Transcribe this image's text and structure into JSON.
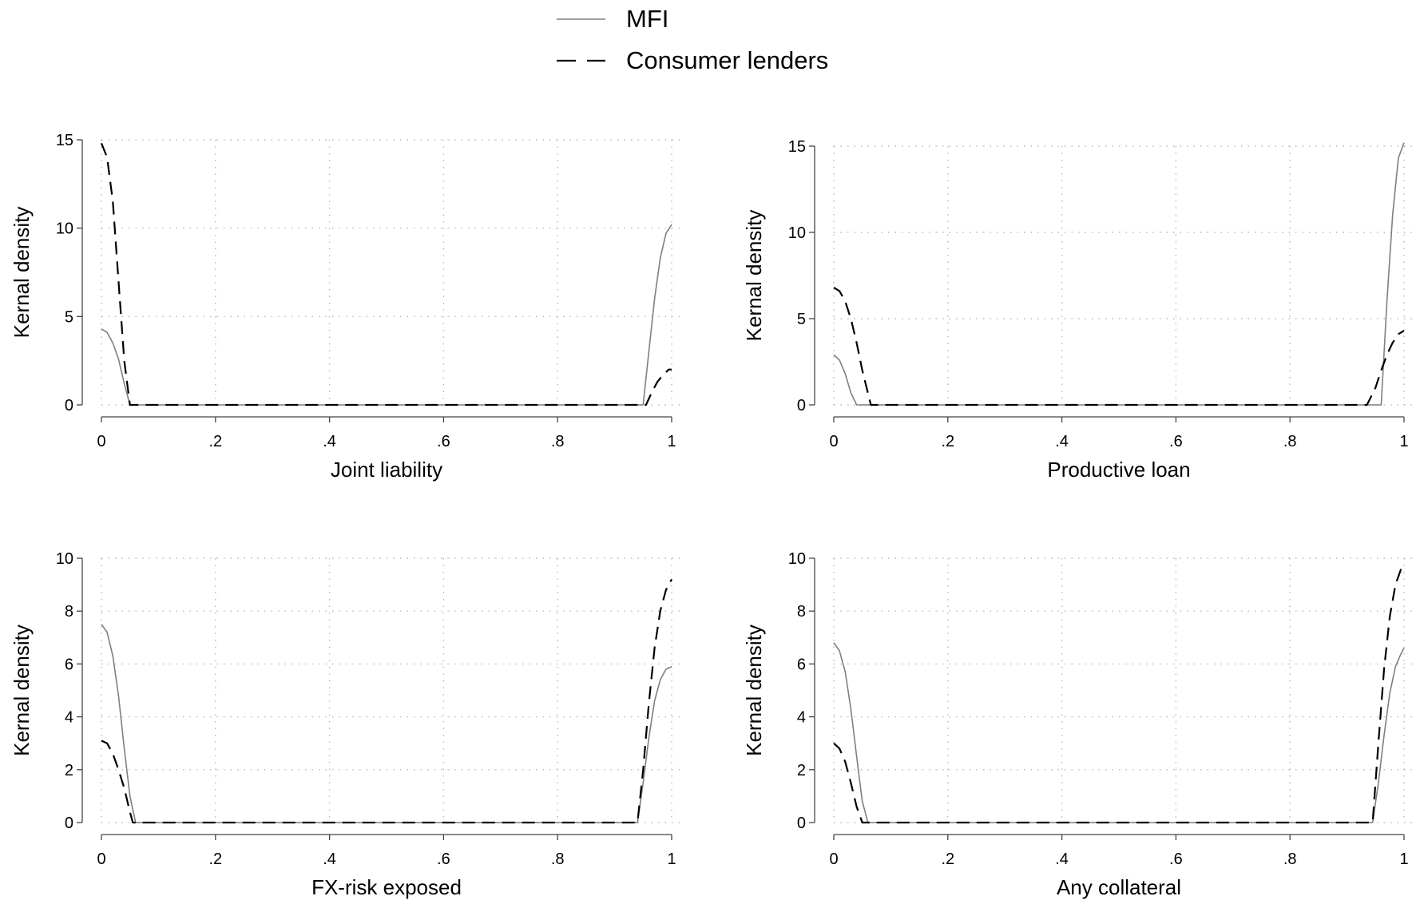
{
  "legend": {
    "placement": "top-center",
    "entries": [
      {
        "label": "MFI",
        "style": "solid",
        "color": "#7f7f7f"
      },
      {
        "label": "Consumer lenders",
        "style": "dashed",
        "color": "#000000"
      }
    ]
  },
  "chart_data": [
    {
      "type": "line",
      "xlabel": "Joint liability",
      "ylabel": "Kernal density",
      "xlim": [
        0,
        1
      ],
      "ylim": [
        0,
        15
      ],
      "xticks": [
        {
          "v": 0,
          "label": "0"
        },
        {
          "v": 0.2,
          "label": ".2"
        },
        {
          "v": 0.4,
          "label": ".4"
        },
        {
          "v": 0.6,
          "label": ".6"
        },
        {
          "v": 0.8,
          "label": ".8"
        },
        {
          "v": 1,
          "label": "1"
        }
      ],
      "yticks": [
        {
          "v": 0,
          "label": "0"
        },
        {
          "v": 5,
          "label": "5"
        },
        {
          "v": 10,
          "label": "10"
        },
        {
          "v": 15,
          "label": "15"
        }
      ],
      "grid": true,
      "series": [
        {
          "name": "MFI",
          "style": "solid",
          "color": "#7f7f7f",
          "x": [
            0,
            0.01,
            0.02,
            0.03,
            0.04,
            0.05,
            0.95,
            0.96,
            0.97,
            0.98,
            0.99,
            1.0
          ],
          "y": [
            4.3,
            4.1,
            3.5,
            2.6,
            1.2,
            0,
            0,
            3.0,
            6.0,
            8.3,
            9.7,
            10.2
          ]
        },
        {
          "name": "Consumer lenders",
          "style": "dashed",
          "color": "#000000",
          "x": [
            0,
            0.01,
            0.02,
            0.03,
            0.04,
            0.05,
            0.955,
            0.965,
            0.975,
            0.985,
            0.995,
            1.0
          ],
          "y": [
            14.8,
            14.0,
            11.5,
            7.0,
            2.5,
            0,
            0,
            0.7,
            1.3,
            1.7,
            2.0,
            2.0
          ]
        }
      ]
    },
    {
      "type": "line",
      "xlabel": "Productive loan",
      "ylabel": "Kernal density",
      "xlim": [
        0,
        1
      ],
      "ylim": [
        0,
        15
      ],
      "xticks": [
        {
          "v": 0,
          "label": "0"
        },
        {
          "v": 0.2,
          "label": ".2"
        },
        {
          "v": 0.4,
          "label": ".4"
        },
        {
          "v": 0.6,
          "label": ".6"
        },
        {
          "v": 0.8,
          "label": ".8"
        },
        {
          "v": 1,
          "label": "1"
        }
      ],
      "yticks": [
        {
          "v": 0,
          "label": "0"
        },
        {
          "v": 5,
          "label": "5"
        },
        {
          "v": 10,
          "label": "10"
        },
        {
          "v": 15,
          "label": "15"
        }
      ],
      "grid": true,
      "series": [
        {
          "name": "MFI",
          "style": "solid",
          "color": "#7f7f7f",
          "x": [
            0,
            0.01,
            0.02,
            0.03,
            0.04,
            0.96,
            0.97,
            0.98,
            0.99,
            1.0
          ],
          "y": [
            2.9,
            2.6,
            1.8,
            0.7,
            0,
            0,
            6.0,
            11.0,
            14.3,
            15.2
          ]
        },
        {
          "name": "Consumer lenders",
          "style": "dashed",
          "color": "#000000",
          "x": [
            0,
            0.01,
            0.02,
            0.03,
            0.04,
            0.05,
            0.065,
            0.935,
            0.95,
            0.96,
            0.97,
            0.98,
            0.99,
            1.0
          ],
          "y": [
            6.8,
            6.6,
            6.0,
            5.0,
            3.6,
            2.0,
            0,
            0,
            1.0,
            2.0,
            2.9,
            3.6,
            4.1,
            4.3
          ]
        }
      ]
    },
    {
      "type": "line",
      "xlabel": "FX-risk exposed",
      "ylabel": "Kernal density",
      "xlim": [
        0,
        1
      ],
      "ylim": [
        0,
        10
      ],
      "xticks": [
        {
          "v": 0,
          "label": "0"
        },
        {
          "v": 0.2,
          "label": ".2"
        },
        {
          "v": 0.4,
          "label": ".4"
        },
        {
          "v": 0.6,
          "label": ".6"
        },
        {
          "v": 0.8,
          "label": ".8"
        },
        {
          "v": 1,
          "label": "1"
        }
      ],
      "yticks": [
        {
          "v": 0,
          "label": "0"
        },
        {
          "v": 2,
          "label": "2"
        },
        {
          "v": 4,
          "label": "4"
        },
        {
          "v": 6,
          "label": "6"
        },
        {
          "v": 8,
          "label": "8"
        },
        {
          "v": 10,
          "label": "10"
        }
      ],
      "grid": true,
      "series": [
        {
          "name": "MFI",
          "style": "solid",
          "color": "#7f7f7f",
          "x": [
            0,
            0.01,
            0.02,
            0.03,
            0.04,
            0.05,
            0.06,
            0.94,
            0.95,
            0.96,
            0.97,
            0.98,
            0.99,
            1.0
          ],
          "y": [
            7.5,
            7.2,
            6.3,
            4.8,
            2.8,
            1.0,
            0,
            0,
            1.5,
            3.2,
            4.6,
            5.4,
            5.8,
            5.9
          ]
        },
        {
          "name": "Consumer lenders",
          "style": "dashed",
          "color": "#000000",
          "x": [
            0,
            0.01,
            0.02,
            0.03,
            0.04,
            0.05,
            0.055,
            0.94,
            0.95,
            0.96,
            0.97,
            0.98,
            0.99,
            1.0
          ],
          "y": [
            3.1,
            3.0,
            2.6,
            2.0,
            1.3,
            0.4,
            0,
            0,
            2.0,
            4.5,
            6.6,
            8.0,
            8.8,
            9.2
          ]
        }
      ]
    },
    {
      "type": "line",
      "xlabel": "Any collateral",
      "ylabel": "Kernal density",
      "xlim": [
        0,
        1
      ],
      "ylim": [
        0,
        10
      ],
      "xticks": [
        {
          "v": 0,
          "label": "0"
        },
        {
          "v": 0.2,
          "label": ".2"
        },
        {
          "v": 0.4,
          "label": ".4"
        },
        {
          "v": 0.6,
          "label": ".6"
        },
        {
          "v": 0.8,
          "label": ".8"
        },
        {
          "v": 1,
          "label": "1"
        }
      ],
      "yticks": [
        {
          "v": 0,
          "label": "0"
        },
        {
          "v": 2,
          "label": "2"
        },
        {
          "v": 4,
          "label": "4"
        },
        {
          "v": 6,
          "label": "6"
        },
        {
          "v": 8,
          "label": "8"
        },
        {
          "v": 10,
          "label": "10"
        }
      ],
      "grid": true,
      "series": [
        {
          "name": "MFI",
          "style": "solid",
          "color": "#7f7f7f",
          "x": [
            0,
            0.01,
            0.02,
            0.03,
            0.04,
            0.05,
            0.06,
            0.945,
            0.955,
            0.965,
            0.975,
            0.985,
            0.995,
            1.0
          ],
          "y": [
            6.8,
            6.5,
            5.7,
            4.3,
            2.5,
            0.8,
            0,
            0,
            1.5,
            3.3,
            4.9,
            5.9,
            6.4,
            6.6
          ]
        },
        {
          "name": "Consumer lenders",
          "style": "dashed",
          "color": "#000000",
          "x": [
            0,
            0.01,
            0.02,
            0.03,
            0.04,
            0.05,
            0.945,
            0.955,
            0.965,
            0.975,
            0.985,
            0.995,
            1.0
          ],
          "y": [
            3.0,
            2.8,
            2.3,
            1.5,
            0.6,
            0,
            0,
            3.0,
            5.8,
            7.8,
            9.0,
            9.6,
            9.8
          ]
        }
      ]
    }
  ]
}
